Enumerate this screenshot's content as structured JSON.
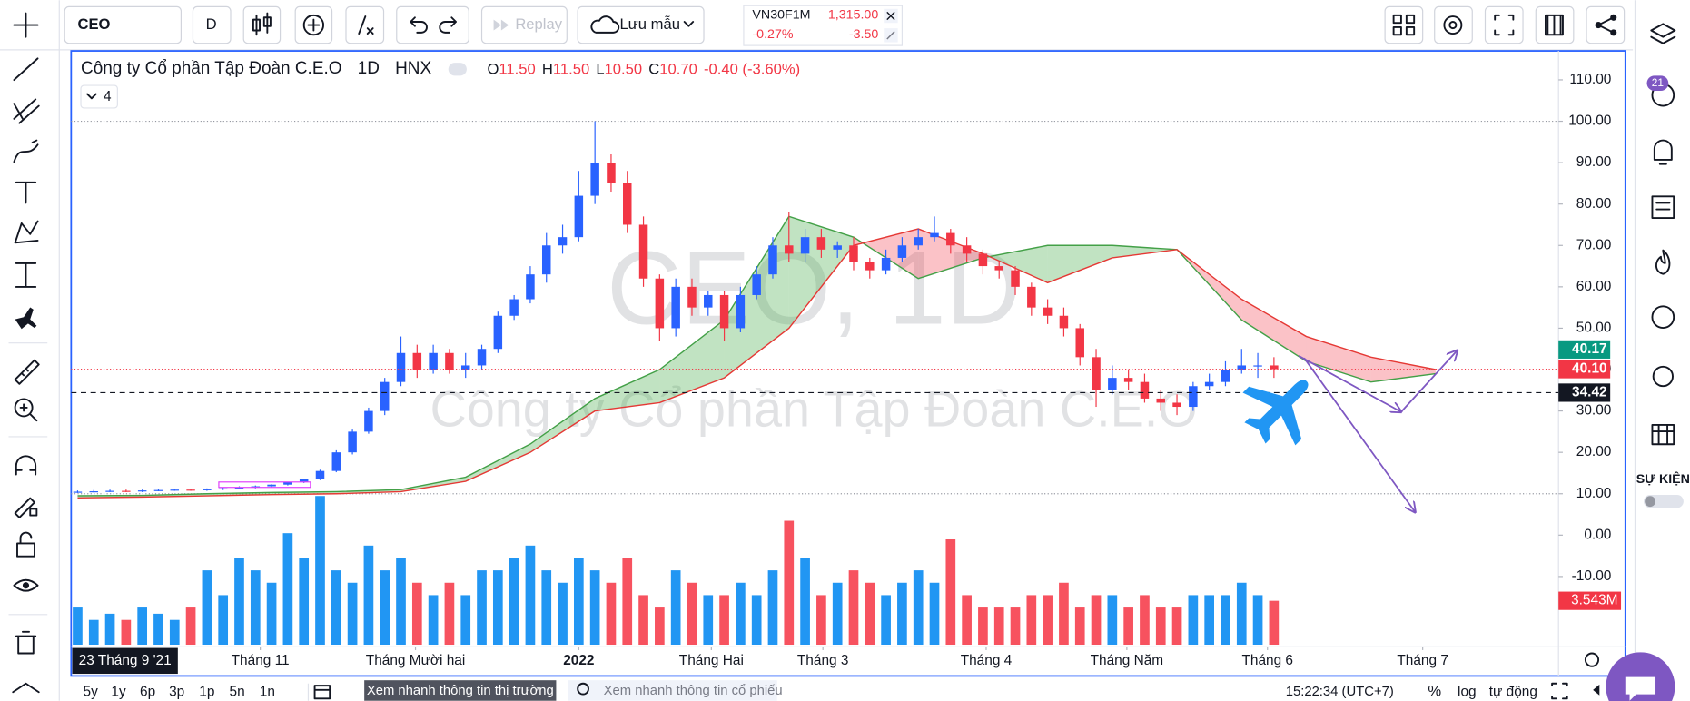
{
  "toolbar": {
    "symbol": "CEO",
    "interval": "D",
    "replay": "Replay",
    "save": "Lưu mẫu",
    "watch": {
      "symbol": "VN30F1M",
      "price": "1,315.00",
      "change_pct": "-0.27%",
      "change": "-3.50"
    }
  },
  "chart_data": {
    "type": "candlestick",
    "title": "Công ty Cổ phần Tập Đoàn C.E.O",
    "interval": "1D",
    "exchange": "HNX",
    "ohlc_legend": [
      {
        "key": "O",
        "value": "11.50"
      },
      {
        "key": "H",
        "value": "11.50"
      },
      {
        "key": "L",
        "value": "10.50"
      },
      {
        "key": "C",
        "value": "10.70"
      }
    ],
    "change": "-0.40 (-3.60%)",
    "indicator_count": "4",
    "watermark": [
      "CEO, 1D",
      "Công ty Cổ phần Tập Đoàn C.E.O"
    ],
    "open": [
      10.4,
      10.5,
      10.6,
      10.7,
      10.6,
      10.8,
      10.9,
      11.0,
      10.9,
      11.1,
      11.3,
      11.5,
      11.8,
      12.2,
      12.8,
      13.5,
      15.5,
      20,
      25,
      30,
      37,
      44,
      40,
      44,
      40,
      41,
      45,
      53,
      57,
      63,
      70,
      72,
      82,
      90,
      85,
      75,
      62,
      50,
      60,
      55,
      58,
      50,
      58,
      63,
      70,
      68,
      72,
      69,
      70,
      66,
      64,
      67,
      70,
      72,
      73,
      70,
      68,
      65,
      64,
      60,
      55,
      53,
      50,
      43,
      35,
      38,
      37,
      33,
      32,
      31,
      36,
      37,
      40,
      41,
      41
    ],
    "high": [
      10.8,
      10.9,
      11.0,
      11.0,
      11.0,
      11.1,
      11.2,
      11.2,
      11.3,
      11.5,
      11.8,
      12.0,
      12.3,
      12.9,
      13.6,
      15.8,
      20.5,
      25.5,
      30.8,
      38,
      48,
      46,
      46,
      45,
      44,
      46,
      54,
      58,
      65,
      73,
      75,
      88,
      100,
      92,
      88,
      77,
      63,
      62,
      62,
      59,
      59,
      60,
      65,
      72,
      78,
      74,
      74,
      71,
      72,
      67,
      69,
      72,
      74,
      77,
      74,
      72,
      69,
      66,
      65,
      61,
      57,
      55,
      51,
      45,
      41,
      40,
      39,
      35,
      34,
      37,
      39,
      42,
      45,
      44,
      43
    ],
    "low": [
      10.2,
      10.3,
      10.4,
      10.4,
      10.4,
      10.6,
      10.7,
      10.7,
      10.7,
      10.9,
      11.1,
      11.3,
      11.6,
      12.0,
      12.6,
      13.3,
      15.2,
      19.5,
      24.5,
      29,
      36,
      38,
      39,
      39,
      38,
      40,
      44,
      52,
      56,
      61,
      68,
      71,
      80,
      83,
      73,
      60,
      47,
      48,
      53,
      53,
      47,
      49,
      57,
      62,
      66,
      66,
      67,
      67,
      64,
      62,
      63,
      66,
      69,
      71,
      68,
      66,
      63,
      62,
      58,
      53,
      51,
      48,
      41,
      31,
      34,
      35,
      32,
      30,
      29,
      30,
      35,
      36,
      39,
      38,
      38
    ],
    "close": [
      10.5,
      10.6,
      10.7,
      10.6,
      10.8,
      10.9,
      11.0,
      10.9,
      11.1,
      11.3,
      11.5,
      11.8,
      12.2,
      12.8,
      13.5,
      15.5,
      20,
      25,
      30,
      37,
      44,
      40,
      44,
      40,
      41,
      45,
      53,
      57,
      63,
      70,
      72,
      82,
      90,
      85,
      75,
      62,
      50,
      60,
      55,
      58,
      50,
      58,
      63,
      70,
      68,
      72,
      69,
      70,
      66,
      64,
      67,
      70,
      72,
      73,
      70,
      68,
      65,
      64,
      60,
      55,
      53,
      50,
      43,
      35,
      38,
      37,
      33,
      32,
      31,
      36,
      37,
      40,
      41,
      41,
      40.1
    ],
    "up_color": "#2962ff",
    "down_color": "#f23645",
    "volume": {
      "values": [
        3,
        2,
        2.5,
        2,
        3,
        2.5,
        2,
        3,
        6,
        4,
        7,
        6,
        5,
        9,
        7,
        12,
        6,
        5,
        8,
        6,
        7,
        5,
        4,
        5,
        4,
        6,
        6,
        7,
        8,
        6,
        5,
        7,
        6,
        5,
        7,
        4,
        3,
        6,
        5,
        4,
        4,
        5,
        4,
        6,
        10,
        7,
        4,
        5,
        6,
        5,
        4,
        5,
        6,
        5,
        8.5,
        4,
        3,
        3,
        3,
        4,
        4,
        5,
        3,
        4,
        4,
        3,
        4,
        3,
        3,
        4,
        4,
        4,
        5,
        4,
        3.543
      ],
      "up_color": "#2196f3",
      "down_color": "#f7525f"
    },
    "cloud": {
      "x": [
        0,
        4,
        8,
        12,
        16,
        20,
        24,
        28,
        32,
        36,
        40,
        44,
        48,
        52,
        56,
        60,
        64,
        68,
        72,
        76,
        80,
        84
      ],
      "span_a": [
        9.5,
        9.6,
        10,
        10.3,
        10.5,
        11,
        14,
        22,
        33,
        40,
        52,
        77,
        72,
        62,
        67,
        70,
        70,
        69,
        52,
        42,
        37,
        39
      ],
      "span_b": [
        9,
        9.2,
        9.5,
        9.8,
        10,
        10.5,
        13,
        20,
        30,
        32,
        38,
        50,
        70,
        74,
        68,
        61,
        67,
        69,
        57,
        48,
        43,
        40
      ],
      "span_a_color": "#43a047",
      "span_b_color": "#e53935",
      "bull_fill": "rgba(76,175,80,0.35)",
      "bear_fill": "rgba(242,54,69,0.3)"
    },
    "xlim": [
      -0.4,
      91.6
    ],
    "ylim": [
      -27,
      117
    ],
    "yticks": [
      {
        "value": 110,
        "label": "110.00"
      },
      {
        "value": 100,
        "label": "100.00"
      },
      {
        "value": 90,
        "label": "90.00"
      },
      {
        "value": 80,
        "label": "80.00"
      },
      {
        "value": 70,
        "label": "70.00"
      },
      {
        "value": 60,
        "label": "60.00"
      },
      {
        "value": 50,
        "label": "50.00"
      },
      {
        "value": 40,
        "label": "40.00"
      },
      {
        "value": 30,
        "label": "30.00"
      },
      {
        "value": 20,
        "label": "20.00"
      },
      {
        "value": 10,
        "label": "10.00"
      },
      {
        "value": 0,
        "label": "0.00"
      },
      {
        "value": -10,
        "label": "-10.00"
      }
    ],
    "hlines": [
      100,
      10
    ],
    "price_markers": [
      {
        "value": 40.1,
        "label": "40.10",
        "color": "#f23645",
        "style": "dotted"
      },
      {
        "value": 40.17,
        "label": "40.17",
        "color": "#089981",
        "style": "none"
      },
      {
        "value": 34.42,
        "label": "34.42",
        "color": "#131722",
        "style": "dashed"
      }
    ],
    "volume_marker": {
      "value": 3.543,
      "label": "3.543M",
      "color": "#f23645"
    },
    "xticks": [
      {
        "value": 11.3,
        "label": "Tháng 11"
      },
      {
        "value": 20.9,
        "label": "Tháng Mười hai"
      },
      {
        "value": 31,
        "label": "2022"
      },
      {
        "value": 39.2,
        "label": "Tháng Hai"
      },
      {
        "value": 46.1,
        "label": "Tháng 3"
      },
      {
        "value": 56.2,
        "label": "Tháng 4"
      },
      {
        "value": 64.9,
        "label": "Tháng Năm"
      },
      {
        "value": 73.6,
        "label": "Tháng 6"
      },
      {
        "value": 83.2,
        "label": "Tháng 7"
      }
    ],
    "crosshair_date": "23 Tháng 9 '21"
  },
  "bottom_bar": {
    "ranges": [
      "5y",
      "1y",
      "6p",
      "3p",
      "1p",
      "5n",
      "1n"
    ],
    "market_button": "Xem nhanh thông tin thị trường",
    "stock_search": "Xem nhanh thông tin cổ phiếu",
    "clock": "15:22:34 (UTC+7)",
    "percent": "%",
    "log": "log",
    "auto": "tự động"
  },
  "sidebar": {
    "alerts_badge": "21",
    "events": "SỰ KIỆN"
  }
}
